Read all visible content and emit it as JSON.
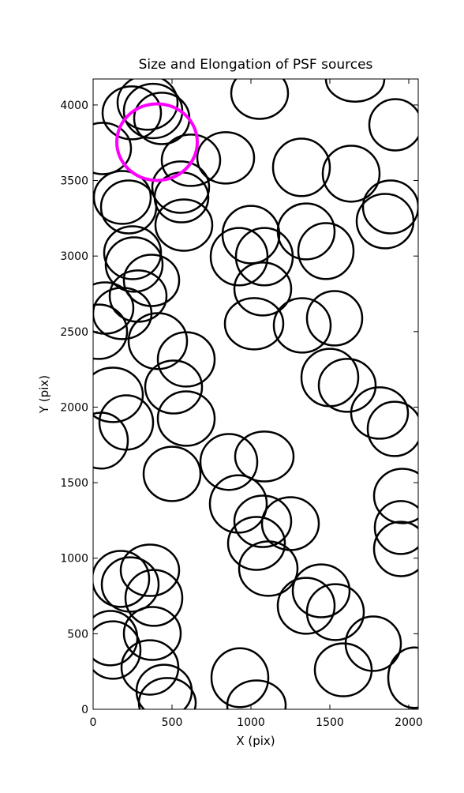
{
  "chart_data": {
    "type": "ellipse",
    "title": "Size and Elongation of PSF sources",
    "xlabel": "X (pix)",
    "ylabel": "Y (pix)",
    "xlim": [
      0,
      2060
    ],
    "ylim": [
      0,
      4172
    ],
    "xticks": [
      0,
      500,
      1000,
      1500,
      2000
    ],
    "yticks": [
      0,
      500,
      1000,
      1500,
      2000,
      2500,
      3000,
      3500,
      4000
    ],
    "color": "#000000",
    "x": [
      1660,
      1055,
      1915,
      60,
      345,
      245,
      435,
      380,
      620,
      840,
      555,
      560,
      1320,
      1635,
      1885,
      1850,
      185,
      225,
      575,
      250,
      1000,
      1350,
      1475,
      925,
      1085,
      1075,
      260,
      370,
      285,
      75,
      185,
      35,
      1020,
      1325,
      1530,
      410,
      590,
      1500,
      1610,
      1815,
      1910,
      510,
      125,
      210,
      590,
      50,
      500,
      860,
      1085,
      1960,
      1950,
      1950,
      920,
      1075,
      1250,
      1035,
      1110,
      360,
      175,
      235,
      385,
      1445,
      1350,
      1535,
      1775,
      1585,
      2035,
      110,
      125,
      375,
      360,
      450,
      470,
      930,
      1035
    ],
    "y": [
      4172,
      4078,
      3869,
      3712,
      4016,
      3948,
      3911,
      3960,
      3634,
      3650,
      3456,
      3388,
      3587,
      3545,
      3325,
      3231,
      3388,
      3325,
      3205,
      3022,
      3142,
      3163,
      3033,
      2996,
      2996,
      2782,
      2944,
      2839,
      2735,
      2656,
      2620,
      2499,
      2552,
      2541,
      2588,
      2437,
      2316,
      2196,
      2144,
      1961,
      1856,
      2133,
      2081,
      1898,
      1924,
      1778,
      1558,
      1637,
      1673,
      1412,
      1203,
      1061,
      1359,
      1244,
      1229,
      1098,
      931,
      920,
      863,
      826,
      737,
      784,
      685,
      643,
      434,
      261,
      209,
      471,
      392,
      502,
      277,
      120,
      42,
      209,
      26
    ],
    "widths": [
      370,
      360,
      330,
      360,
      380,
      370,
      350,
      370,
      370,
      360,
      360,
      340,
      360,
      360,
      350,
      360,
      360,
      350,
      360,
      360,
      360,
      360,
      350,
      360,
      360,
      360,
      360,
      350,
      360,
      360,
      370,
      360,
      370,
      360,
      350,
      370,
      360,
      360,
      360,
      360,
      340,
      360,
      380,
      340,
      360,
      340,
      360,
      360,
      370,
      360,
      330,
      340,
      360,
      360,
      360,
      360,
      370,
      370,
      360,
      360,
      360,
      360,
      360,
      360,
      350,
      360,
      330,
      340,
      350,
      360,
      360,
      350,
      360,
      360,
      370
    ],
    "heights": [
      300,
      340,
      340,
      340,
      360,
      350,
      340,
      360,
      340,
      340,
      340,
      330,
      380,
      370,
      350,
      360,
      350,
      350,
      340,
      350,
      380,
      370,
      370,
      380,
      380,
      350,
      360,
      340,
      340,
      340,
      340,
      360,
      340,
      360,
      360,
      370,
      360,
      380,
      350,
      340,
      360,
      350,
      360,
      360,
      360,
      370,
      360,
      370,
      330,
      360,
      350,
      360,
      380,
      340,
      350,
      350,
      360,
      340,
      370,
      360,
      370,
      350,
      370,
      370,
      360,
      350,
      400,
      360,
      380,
      350,
      360,
      350,
      330,
      390,
      330
    ],
    "highlight": {
      "x": 405,
      "y": 3754,
      "width": 510,
      "height": 507,
      "color": "#ff00ff"
    }
  }
}
